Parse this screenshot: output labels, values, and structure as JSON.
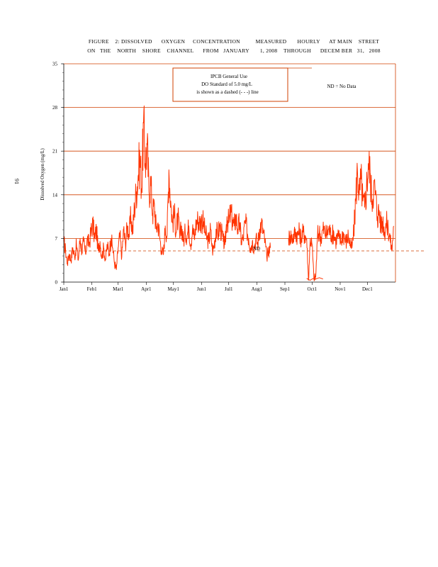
{
  "page": {
    "page_number": "91"
  },
  "chart_data": {
    "type": "line",
    "title_line1": "FIGURE    2: DISSOLVED      OXYGEN     CONCENTRATION          MEASURED       HOURLY      AT MAIN    STREET",
    "title_line2": "ON   THE    NORTH    SHORE    CHANNEL      FROM   JANUARY       1, 2008    THROUGH      DECEM BER   31,   2008",
    "ylabel": "Dissolved    Oxygen    (mg/L)",
    "xlabel": "",
    "ylim": [
      0,
      35
    ],
    "yticks": [
      "0",
      "7",
      "14",
      "21",
      "28",
      "35"
    ],
    "ytick_values": [
      0,
      7,
      14,
      21,
      28,
      35
    ],
    "xticks": [
      "Jan1",
      "Feb1",
      "Mar1",
      "Apr1",
      "May1",
      "Jun1",
      "Jul1",
      "Aug1",
      "Sep1",
      "Oct1",
      "Nov1",
      "Dec1"
    ],
    "xtick_days": [
      0,
      31,
      60,
      91,
      121,
      152,
      182,
      213,
      244,
      274,
      305,
      335
    ],
    "x_range_days": [
      0,
      366
    ],
    "legend_box": {
      "line1": "IPCB    General    Use",
      "line2": "DO   Standard    of   5.0   mg/L",
      "line3": "is  shown     as  a  dashed     (-  -  -)  line"
    },
    "legend_note": "ND  =  No   Data",
    "annotation_nd": "ND",
    "standard_value": 5.0,
    "gap_days": [
      228,
      248
    ],
    "series": [
      {
        "name": "Dissolved Oxygen (hourly)",
        "color": "#ff3300",
        "x": [
          0,
          2,
          4,
          6,
          8,
          10,
          12,
          14,
          16,
          18,
          20,
          22,
          24,
          26,
          28,
          30,
          32,
          34,
          36,
          38,
          40,
          42,
          44,
          46,
          48,
          50,
          52,
          54,
          56,
          58,
          60,
          62,
          64,
          66,
          68,
          70,
          72,
          74,
          76,
          78,
          80,
          82,
          84,
          86,
          88,
          90,
          92,
          94,
          96,
          98,
          100,
          102,
          104,
          106,
          108,
          110,
          112,
          114,
          116,
          118,
          120,
          122,
          124,
          126,
          128,
          130,
          132,
          134,
          136,
          138,
          140,
          142,
          144,
          146,
          148,
          150,
          152,
          154,
          156,
          158,
          160,
          162,
          164,
          166,
          168,
          170,
          172,
          174,
          176,
          178,
          180,
          182,
          184,
          186,
          188,
          190,
          192,
          194,
          196,
          198,
          200,
          202,
          204,
          206,
          208,
          210,
          212,
          214,
          216,
          218,
          220,
          222,
          224,
          226,
          228
        ],
        "y": [
          6.5,
          5.0,
          3.0,
          4.5,
          3.5,
          5.5,
          4.0,
          6.0,
          3.5,
          7.0,
          5.0,
          6.5,
          4.5,
          7.0,
          6.0,
          8.0,
          9.5,
          7.0,
          8.5,
          5.0,
          6.5,
          4.0,
          5.5,
          3.5,
          6.0,
          4.5,
          7.0,
          5.5,
          3.0,
          2.0,
          5.5,
          7.5,
          4.0,
          8.5,
          6.0,
          9.0,
          7.5,
          10.5,
          8.0,
          12.0,
          14.5,
          17.0,
          20.0,
          15.0,
          25.5,
          19.0,
          22.0,
          14.5,
          16.0,
          11.0,
          12.5,
          8.5,
          9.5,
          7.0,
          5.0,
          4.5,
          9.0,
          7.5,
          18.0,
          13.0,
          9.5,
          11.0,
          8.0,
          10.5,
          7.0,
          9.0,
          6.5,
          8.0,
          7.5,
          9.0,
          6.0,
          8.5,
          7.0,
          9.5,
          10.0,
          9.5,
          10.0,
          9.5,
          8.0,
          7.0,
          6.5,
          8.5,
          5.0,
          6.0,
          8.5,
          7.5,
          9.0,
          8.0,
          6.5,
          6.0,
          10.5,
          9.5,
          11.0,
          10.0,
          9.0,
          10.5,
          8.5,
          9.5,
          6.5,
          7.0,
          9.5,
          8.5,
          7.0,
          5.5,
          6.5,
          5.5,
          7.0,
          6.0,
          8.5,
          9.5,
          8.0,
          6.5,
          4.0,
          5.0,
          5.5
        ]
      },
      {
        "name": "Dissolved Oxygen (hourly) after gap",
        "color": "#ff3300",
        "x": [
          248,
          250,
          252,
          254,
          256,
          258,
          260,
          262,
          264,
          266,
          268,
          270,
          272,
          274,
          276,
          278,
          280,
          282,
          284,
          286,
          288,
          290,
          292,
          294,
          296,
          298,
          300,
          302,
          304,
          306,
          308,
          310,
          312,
          314,
          316,
          318,
          320,
          322,
          324,
          326,
          328,
          330,
          332,
          334,
          336,
          338,
          340,
          342,
          344,
          346,
          348,
          350,
          352,
          354,
          356,
          358,
          360,
          362,
          364
        ],
        "y": [
          7.0,
          7.5,
          7.0,
          7.5,
          8.0,
          7.5,
          8.0,
          7.0,
          8.0,
          7.5,
          7.0,
          0.3,
          7.0,
          6.0,
          0.5,
          0.8,
          7.5,
          8.0,
          7.0,
          8.5,
          8.0,
          7.5,
          8.5,
          8.0,
          7.5,
          8.0,
          6.5,
          7.5,
          7.0,
          6.5,
          8.0,
          7.0,
          6.5,
          7.5,
          6.0,
          5.5,
          8.0,
          13.0,
          18.0,
          14.0,
          16.5,
          13.0,
          12.0,
          15.0,
          19.0,
          17.5,
          13.0,
          15.5,
          14.0,
          10.5,
          11.5,
          9.0,
          10.0,
          8.0,
          9.5,
          8.5,
          7.0,
          5.0,
          9.0
        ]
      },
      {
        "name": "Low segment late September",
        "color": "#ff3300",
        "x": [
          268,
          270,
          272,
          274,
          276,
          278,
          280,
          282,
          284,
          286
        ],
        "y": [
          0.6,
          0.4,
          0.3,
          0.5,
          0.6,
          0.5,
          0.6,
          0.7,
          0.6,
          0.5
        ]
      }
    ]
  }
}
